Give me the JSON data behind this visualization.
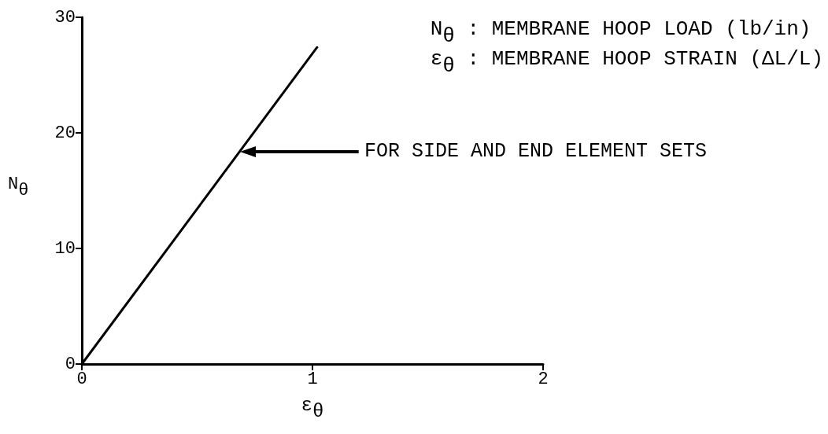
{
  "chart_data": {
    "type": "line",
    "xlabel": "ε$_{θ}$",
    "ylabel": "N$_{θ}$",
    "annotations": [
      "N$_{θ}$ : MEMBRANE HOOP LOAD (lb/in)",
      "ε$_{θ}$ : MEMBRANE HOOP STRAIN (ΔL/L)",
      "FOR SIDE AND END ELEMENT SETS"
    ],
    "x": [
      0,
      1.02
    ],
    "values": [
      0,
      27.4
    ],
    "color": "#000000",
    "xlim": [
      0,
      2
    ],
    "ylim": [
      0,
      30
    ],
    "xticks": [
      0,
      1,
      2
    ],
    "yticks": [
      0,
      10,
      20,
      30
    ],
    "marker": "none",
    "line_style": "solid"
  }
}
